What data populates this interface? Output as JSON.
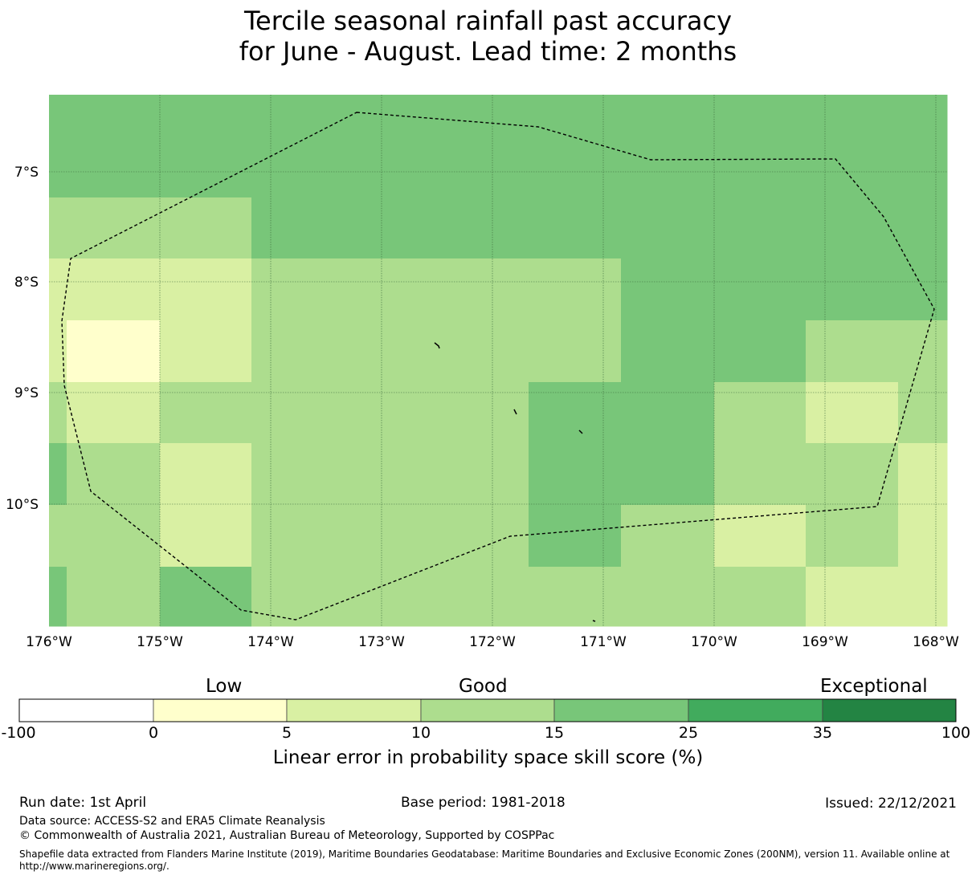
{
  "title": {
    "line1": "Tercile seasonal rainfall past accuracy",
    "line2": "for June - August. Lead time: 2 months"
  },
  "map": {
    "lon_labels": [
      "176°W",
      "175°W",
      "174°W",
      "173°W",
      "172°W",
      "171°W",
      "170°W",
      "169°W",
      "168°W"
    ],
    "lat_labels": [
      "7°S",
      "8°S",
      "9°S",
      "10°S"
    ],
    "boundary_line": "dashed",
    "gridlines": true,
    "skill_grid": {
      "value_scale": "0=0-5%, 1=5-10%, 2=10-15%, 3=15-25%",
      "rows_north_to_south": [
        [
          3,
          3,
          3,
          3,
          3,
          3,
          3,
          3,
          3,
          3
        ],
        [
          2,
          2,
          2,
          3,
          3,
          3,
          3,
          3,
          3,
          3
        ],
        [
          1,
          1,
          1,
          2,
          2,
          2,
          3,
          3,
          3,
          3
        ],
        [
          1,
          0,
          1,
          2,
          2,
          2,
          3,
          3,
          2,
          2
        ],
        [
          2,
          1,
          2,
          2,
          2,
          3,
          3,
          2,
          1,
          2
        ],
        [
          3,
          2,
          1,
          2,
          2,
          3,
          3,
          2,
          2,
          1
        ],
        [
          2,
          2,
          1,
          2,
          2,
          3,
          2,
          1,
          2,
          1
        ],
        [
          3,
          2,
          3,
          2,
          2,
          2,
          2,
          2,
          1,
          1
        ]
      ]
    }
  },
  "colorbar": {
    "captions": [
      "Low",
      "Good",
      "Exceptional"
    ],
    "ticks": [
      "-100",
      "0",
      "5",
      "10",
      "15",
      "25",
      "35",
      "100"
    ],
    "colors": [
      "#ffffff",
      "#ffffcc",
      "#d9f0a3",
      "#addd8e",
      "#78c679",
      "#41ab5d",
      "#238443"
    ],
    "label": "Linear error in probability space skill score (%)"
  },
  "footer": {
    "run_date": "Run date: 1st April",
    "base_period": "Base period: 1981-2018",
    "issued": "Issued: 22/12/2021",
    "data_source": "Data source: ACCESS-S2 and ERA5 Climate Reanalysis",
    "copyright": "© Commonwealth of Australia 2021, Australian Bureau of Meteorology, Supported by COSPPac",
    "shapefile": "Shapefile data extracted from Flanders Marine Institute (2019), Maritime Boundaries Geodatabase: Maritime Boundaries and Exclusive Economic Zones (200NM), version 11. Available online at http://www.marineregions.org/."
  }
}
